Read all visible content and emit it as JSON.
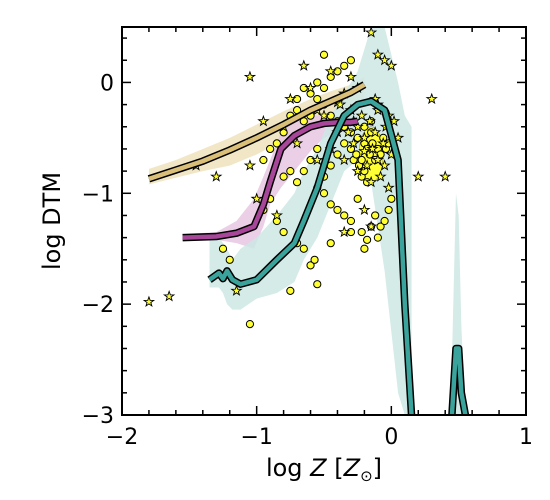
{
  "chart_data": {
    "type": "scatter",
    "title": "",
    "xlabel_parts": {
      "prefix": "log ",
      "var": "Z",
      "unit_open": " [",
      "unit": "Z",
      "unit_sub": "⊙",
      "unit_close": "]"
    },
    "ylabel": "log DTM",
    "xlim": [
      -2,
      1
    ],
    "ylim": [
      -3,
      0.5
    ],
    "x_ticks": [
      {
        "v": -2,
        "label": "−2"
      },
      {
        "v": -1,
        "label": "−1"
      },
      {
        "v": 0,
        "label": "0"
      },
      {
        "v": 1,
        "label": "1"
      }
    ],
    "y_ticks": [
      {
        "v": -3,
        "label": "−3"
      },
      {
        "v": -2,
        "label": "−2"
      },
      {
        "v": -1,
        "label": "−1"
      },
      {
        "v": 0,
        "label": "0"
      }
    ],
    "grid": false,
    "colors": {
      "tan": "#d9bf77",
      "tan_band": "#efe3bd",
      "magenta": "#a8479a",
      "magenta_band": "#e8c7e2",
      "teal": "#3aa39b",
      "teal_band": "#cde8e4",
      "points": "#ffff33"
    },
    "lines": [
      {
        "name": "tan",
        "x": [
          -1.8,
          -1.6,
          -1.4,
          -1.2,
          -1.0,
          -0.8,
          -0.6,
          -0.45,
          -0.3,
          -0.2
        ],
        "y": [
          -0.87,
          -0.79,
          -0.71,
          -0.61,
          -0.5,
          -0.38,
          -0.25,
          -0.17,
          -0.09,
          -0.02
        ],
        "band_lo": [
          -0.92,
          -0.86,
          -0.8,
          -0.75,
          -0.65,
          -0.52,
          -0.4,
          -0.3,
          -0.22,
          -0.15
        ],
        "band_hi": [
          -0.78,
          -0.7,
          -0.6,
          -0.5,
          -0.38,
          -0.26,
          -0.15,
          -0.08,
          -0.02,
          0.05
        ]
      },
      {
        "name": "magenta",
        "x": [
          -1.55,
          -1.3,
          -1.15,
          -1.02,
          -0.95,
          -0.9,
          -0.82,
          -0.72,
          -0.6,
          -0.5,
          -0.4,
          -0.3,
          -0.25
        ],
        "y": [
          -1.4,
          -1.39,
          -1.36,
          -1.3,
          -1.1,
          -0.9,
          -0.6,
          -0.48,
          -0.4,
          -0.37,
          -0.36,
          -0.36,
          -0.35
        ],
        "band_lo": [
          -1.43,
          -1.42,
          -1.45,
          -1.5,
          -1.3,
          -1.1,
          -0.95,
          -0.8,
          -0.62,
          -0.5,
          -0.45,
          -0.42,
          -0.4
        ],
        "band_hi": [
          -1.37,
          -1.35,
          -1.25,
          -1.05,
          -0.85,
          -0.7,
          -0.45,
          -0.35,
          -0.3,
          -0.3,
          -0.3,
          -0.3,
          -0.3
        ]
      },
      {
        "name": "teal",
        "x": [
          -1.35,
          -1.28,
          -1.25,
          -1.22,
          -1.18,
          -1.12,
          -1.0,
          -0.85,
          -0.72,
          -0.65,
          -0.55,
          -0.45,
          -0.35,
          -0.25,
          -0.15,
          -0.05,
          0.05,
          0.1,
          0.15
        ],
        "y": [
          -1.78,
          -1.72,
          -1.77,
          -1.7,
          -1.78,
          -1.82,
          -1.78,
          -1.6,
          -1.45,
          -1.25,
          -0.95,
          -0.55,
          -0.3,
          -0.2,
          -0.17,
          -0.25,
          -0.7,
          -2.0,
          -3.0
        ],
        "band_lo": [
          -1.85,
          -1.85,
          -1.9,
          -2.0,
          -2.05,
          -2.05,
          -1.95,
          -1.9,
          -1.8,
          -1.6,
          -1.4,
          -1.1,
          -0.8,
          -0.7,
          -0.9,
          -1.7,
          -2.8,
          -3.0,
          -3.0
        ],
        "band_hi": [
          -1.4,
          -1.4,
          -1.45,
          -1.5,
          -1.6,
          -1.5,
          -1.4,
          -1.2,
          -1.0,
          -0.8,
          -0.6,
          -0.3,
          -0.1,
          0.1,
          0.5,
          0.5,
          0.0,
          -0.3,
          -0.4
        ]
      },
      {
        "name": "teal-tail",
        "x": [
          0.45,
          0.48,
          0.5,
          0.52,
          0.55
        ],
        "y": [
          -3.0,
          -2.4,
          -2.4,
          -2.8,
          -3.0
        ],
        "band_lo": [
          -3.0,
          -3.0,
          -3.0,
          -3.0,
          -3.0
        ],
        "band_hi": [
          -2.5,
          -1.0,
          -1.2,
          -2.2,
          -3.0
        ]
      }
    ],
    "stars": [
      [
        -1.8,
        -1.98
      ],
      [
        -1.65,
        -1.93
      ],
      [
        -1.15,
        -1.88
      ],
      [
        -1.3,
        -0.85
      ],
      [
        -1.05,
        -0.75
      ],
      [
        -1.0,
        -1.05
      ],
      [
        -0.85,
        -1.2
      ],
      [
        -0.95,
        -0.35
      ],
      [
        -0.75,
        -0.15
      ],
      [
        -0.8,
        -0.4
      ],
      [
        -0.7,
        -0.55
      ],
      [
        -0.65,
        0.15
      ],
      [
        -0.55,
        -0.25
      ],
      [
        -0.5,
        -0.3
      ],
      [
        -0.45,
        -0.6
      ],
      [
        -0.4,
        -0.18
      ],
      [
        -0.38,
        -0.2
      ],
      [
        -0.35,
        -0.7
      ],
      [
        -0.32,
        -0.45
      ],
      [
        -0.3,
        -0.25
      ],
      [
        -0.28,
        -0.55
      ],
      [
        -0.25,
        -0.4
      ],
      [
        -0.22,
        -0.3
      ],
      [
        -0.2,
        -0.5
      ],
      [
        -0.18,
        -0.75
      ],
      [
        -0.16,
        -0.35
      ],
      [
        -0.14,
        -0.6
      ],
      [
        -0.12,
        -0.45
      ],
      [
        -0.1,
        -0.25
      ],
      [
        -0.08,
        -0.85
      ],
      [
        -0.06,
        -0.55
      ],
      [
        -0.04,
        -0.4
      ],
      [
        -0.02,
        -0.95
      ],
      [
        0.0,
        -0.65
      ],
      [
        0.02,
        -0.35
      ],
      [
        -0.15,
        0.45
      ],
      [
        -0.1,
        0.25
      ],
      [
        -0.05,
        0.2
      ],
      [
        0.0,
        0.15
      ],
      [
        -0.2,
        -1.15
      ],
      [
        -0.15,
        -1.3
      ],
      [
        -0.35,
        -1.35
      ],
      [
        0.2,
        -0.85
      ],
      [
        0.4,
        -0.85
      ],
      [
        0.3,
        -0.15
      ],
      [
        -1.05,
        0.05
      ],
      [
        -1.45,
        -0.75
      ],
      [
        -0.6,
        -0.05
      ],
      [
        -0.25,
        -0.05
      ],
      [
        -0.3,
        0.05
      ],
      [
        -0.45,
        0.1
      ],
      [
        -0.1,
        -0.2
      ],
      [
        -0.05,
        -0.75
      ],
      [
        0.05,
        -0.5
      ],
      [
        -0.55,
        -0.7
      ],
      [
        -0.25,
        -0.8
      ],
      [
        -0.15,
        -0.9
      ],
      [
        -0.35,
        -0.1
      ],
      [
        -0.4,
        -0.45
      ],
      [
        -0.2,
        -0.62
      ],
      [
        -0.1,
        -0.7
      ],
      [
        -0.02,
        -0.3
      ],
      [
        -0.12,
        -0.15
      ],
      [
        -0.28,
        -0.35
      ]
    ],
    "circles": [
      [
        -1.05,
        -2.18
      ],
      [
        -0.75,
        -1.88
      ],
      [
        -0.55,
        -1.82
      ],
      [
        -0.6,
        -1.65
      ],
      [
        -0.57,
        -1.6
      ],
      [
        -0.65,
        -1.5
      ],
      [
        -0.7,
        -1.45
      ],
      [
        -0.8,
        -1.35
      ],
      [
        -0.85,
        -1.25
      ],
      [
        -0.9,
        -1.05
      ],
      [
        -0.8,
        -0.85
      ],
      [
        -0.75,
        -0.8
      ],
      [
        -0.7,
        -0.9
      ],
      [
        -0.55,
        -0.95
      ],
      [
        -0.5,
        -1.0
      ],
      [
        -0.45,
        -1.1
      ],
      [
        -0.4,
        -1.15
      ],
      [
        -0.35,
        -1.2
      ],
      [
        -0.3,
        -1.25
      ],
      [
        -0.25,
        -1.05
      ],
      [
        -0.22,
        -0.85
      ],
      [
        -0.2,
        -0.8
      ],
      [
        -0.18,
        -0.9
      ],
      [
        -0.15,
        -1.3
      ],
      [
        -0.12,
        -1.2
      ],
      [
        -0.1,
        -1.4
      ],
      [
        -0.08,
        -1.3
      ],
      [
        -0.05,
        -1.25
      ],
      [
        -0.02,
        -1.15
      ],
      [
        0.0,
        -1.05
      ],
      [
        -0.3,
        -0.6
      ],
      [
        -0.28,
        -0.7
      ],
      [
        -0.26,
        -0.65
      ],
      [
        -0.24,
        -0.75
      ],
      [
        -0.22,
        -0.7
      ],
      [
        -0.2,
        -0.55
      ],
      [
        -0.18,
        -0.6
      ],
      [
        -0.16,
        -0.65
      ],
      [
        -0.14,
        -0.55
      ],
      [
        -0.12,
        -0.7
      ],
      [
        -0.1,
        -0.6
      ],
      [
        -0.08,
        -0.65
      ],
      [
        -0.06,
        -0.5
      ],
      [
        -0.04,
        -0.6
      ],
      [
        -0.02,
        -0.55
      ],
      [
        -0.35,
        -0.4
      ],
      [
        -0.4,
        -0.35
      ],
      [
        -0.45,
        -0.3
      ],
      [
        -0.5,
        -0.2
      ],
      [
        -0.55,
        -0.15
      ],
      [
        -0.6,
        -0.3
      ],
      [
        -0.65,
        -0.35
      ],
      [
        -0.7,
        -0.25
      ],
      [
        -0.75,
        -0.3
      ],
      [
        -0.8,
        -0.45
      ],
      [
        -0.85,
        -0.55
      ],
      [
        -0.9,
        -0.6
      ],
      [
        -0.95,
        -0.7
      ],
      [
        -0.6,
        -0.1
      ],
      [
        -0.5,
        -0.05
      ],
      [
        -0.45,
        0.05
      ],
      [
        -0.4,
        0.1
      ],
      [
        -0.35,
        0.15
      ],
      [
        -0.3,
        0.2
      ],
      [
        -0.5,
        0.25
      ],
      [
        -0.55,
        0.0
      ],
      [
        -0.65,
        -0.05
      ],
      [
        -0.7,
        -0.15
      ],
      [
        -0.15,
        -0.45
      ],
      [
        -0.25,
        -0.5
      ],
      [
        -0.2,
        -0.4
      ],
      [
        -0.15,
        -0.35
      ],
      [
        -0.3,
        -0.45
      ],
      [
        -0.35,
        -0.55
      ],
      [
        -0.4,
        -0.65
      ],
      [
        -0.45,
        -0.75
      ],
      [
        -0.5,
        -0.85
      ],
      [
        -0.55,
        -0.6
      ],
      [
        -0.6,
        -0.7
      ],
      [
        -0.65,
        -0.8
      ],
      [
        -1.25,
        -1.5
      ],
      [
        -1.2,
        -1.6
      ],
      [
        -0.95,
        -1.15
      ],
      [
        -0.45,
        -1.45
      ],
      [
        -0.3,
        -1.35
      ],
      [
        -0.2,
        -1.5
      ],
      [
        -0.18,
        -1.42
      ],
      [
        -0.22,
        -1.35
      ]
    ],
    "cluster": {
      "center": [
        -0.15,
        -0.65
      ],
      "rx_data": 0.09,
      "ry_data": 0.25
    }
  }
}
